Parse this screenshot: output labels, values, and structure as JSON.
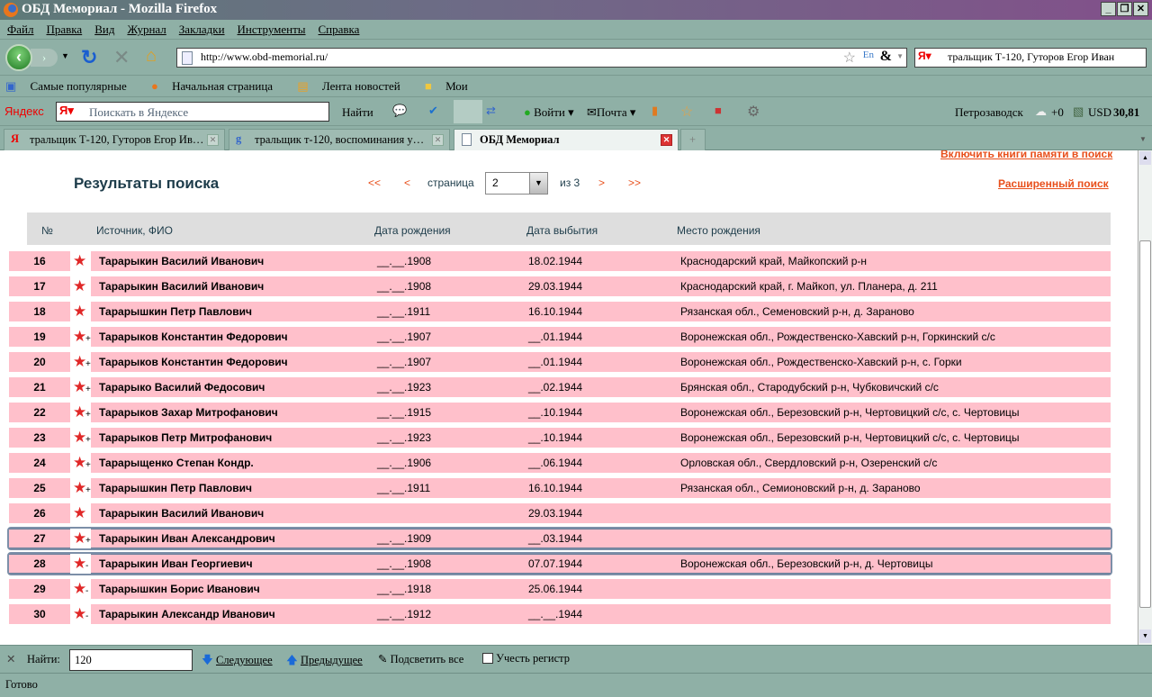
{
  "window": {
    "title": "ОБД Мемориал - Mozilla Firefox"
  },
  "menu": [
    "Файл",
    "Правка",
    "Вид",
    "Журнал",
    "Закладки",
    "Инструменты",
    "Справка"
  ],
  "nav": {
    "url": "http://www.obd-memorial.ru/",
    "search": "тральщик Т-120, Гуторов Егор Иван"
  },
  "bookmarks": [
    "Самые популярные",
    "Начальная страница",
    "Лента новостей",
    "Мои"
  ],
  "yandex": {
    "logo": "Яндекс",
    "placeholder": "Поискать в Яндексе",
    "find": "Найти",
    "login": "Войти",
    "mail": "Почта",
    "city": "Петрозаводск",
    "weather": "+0",
    "currency": "USD",
    "rate": "30,81"
  },
  "tabs": [
    {
      "label": "тральщик Т-120, Гуторов Егор Ив…"
    },
    {
      "label": "тральщик т-120, воспоминания у…"
    },
    {
      "label": "ОБД Мемориал",
      "active": true
    }
  ],
  "page": {
    "top_link": "Включить книги памяти в поиск",
    "title": "Результаты поиска",
    "pager": {
      "first": "<<",
      "prev": "<",
      "label": "страница",
      "current": "2",
      "of": "из 3",
      "next": ">",
      "last": ">>"
    },
    "advanced": "Расширенный поиск",
    "columns": [
      "№",
      "Источник, ФИО",
      "Дата рождения",
      "Дата выбытия",
      "Место рождения"
    ],
    "rows": [
      {
        "n": "16",
        "mark": "",
        "name": "Тарарыкин Василий Иванович",
        "born": "__.__.1908",
        "left": "18.02.1944",
        "place": "Краснодарский край, Майкопский р-н"
      },
      {
        "n": "17",
        "mark": "",
        "name": "Тарарыкин Василий Иванович",
        "born": "__.__.1908",
        "left": "29.03.1944",
        "place": "Краснодарский край, г. Майкоп, ул. Планера, д. 211"
      },
      {
        "n": "18",
        "mark": "",
        "name": "Тарарышкин Петр Павлович",
        "born": "__.__.1911",
        "left": "16.10.1944",
        "place": "Рязанская обл., Семеновский р-н, д. Зараново"
      },
      {
        "n": "19",
        "mark": "+",
        "name": "Тарарыков Константин Федорович",
        "born": "__.__.1907",
        "left": "__.01.1944",
        "place": "Воронежская обл., Рождественско-Хавский р-н, Горкинский с/с"
      },
      {
        "n": "20",
        "mark": "+",
        "name": "Тарарыков Константин Федорович",
        "born": "__.__.1907",
        "left": "__.01.1944",
        "place": "Воронежская обл., Рождественско-Хавский р-н, с. Горки"
      },
      {
        "n": "21",
        "mark": "+",
        "name": "Тарарыко Василий Федосович",
        "born": "__.__.1923",
        "left": "__.02.1944",
        "place": "Брянская обл., Стародубский р-н, Чубковичский с/с"
      },
      {
        "n": "22",
        "mark": "+",
        "name": "Тарарыков Захар Митрофанович",
        "born": "__.__.1915",
        "left": "__.10.1944",
        "place": "Воронежская обл., Березовский р-н, Чертовицкий с/с, с. Чертовицы"
      },
      {
        "n": "23",
        "mark": "+",
        "name": "Тарарыков Петр Митрофанович",
        "born": "__.__.1923",
        "left": "__.10.1944",
        "place": "Воронежская обл., Березовский р-н, Чертовицкий с/с, с. Чертовицы"
      },
      {
        "n": "24",
        "mark": "+",
        "name": "Тарарыщенко Степан Кондр.",
        "born": "__.__.1906",
        "left": "__.06.1944",
        "place": "Орловская обл., Свердловский р-н, Озеренский с/с"
      },
      {
        "n": "25",
        "mark": "+",
        "name": "Тарарышкин Петр Павлович",
        "born": "__.__.1911",
        "left": "16.10.1944",
        "place": "Рязанская обл., Семионовский р-н, д. Зараново"
      },
      {
        "n": "26",
        "mark": "",
        "name": "Тарарыкин Василий Иванович",
        "born": "",
        "left": "29.03.1944",
        "place": ""
      },
      {
        "n": "27",
        "mark": "+",
        "name": "Тарарыкин Иван Александрович",
        "born": "__.__.1909",
        "left": "__.03.1944",
        "place": "",
        "selected": true
      },
      {
        "n": "28",
        "mark": "-",
        "name": "Тарарыкин Иван Георгиевич",
        "born": "__.__.1908",
        "left": "07.07.1944",
        "place": "Воронежская обл., Березовский р-н, д. Чертовицы",
        "selected": true
      },
      {
        "n": "29",
        "mark": "-",
        "name": "Тарарышкин Борис Иванович",
        "born": "__.__.1918",
        "left": "25.06.1944",
        "place": ""
      },
      {
        "n": "30",
        "mark": "-",
        "name": "Тарарыкин Александр Иванович",
        "born": "__.__.1912",
        "left": "__.__.1944",
        "place": ""
      }
    ]
  },
  "find": {
    "label": "Найти:",
    "value": "120",
    "next": "Следующее",
    "prev": "Предыдущее",
    "highlight": "Подсветить все",
    "case": "Учесть регистр"
  },
  "status": "Готово",
  "colors": {
    "row": "#ffc0cb",
    "link": "#e8501c",
    "star": "#e02828"
  }
}
